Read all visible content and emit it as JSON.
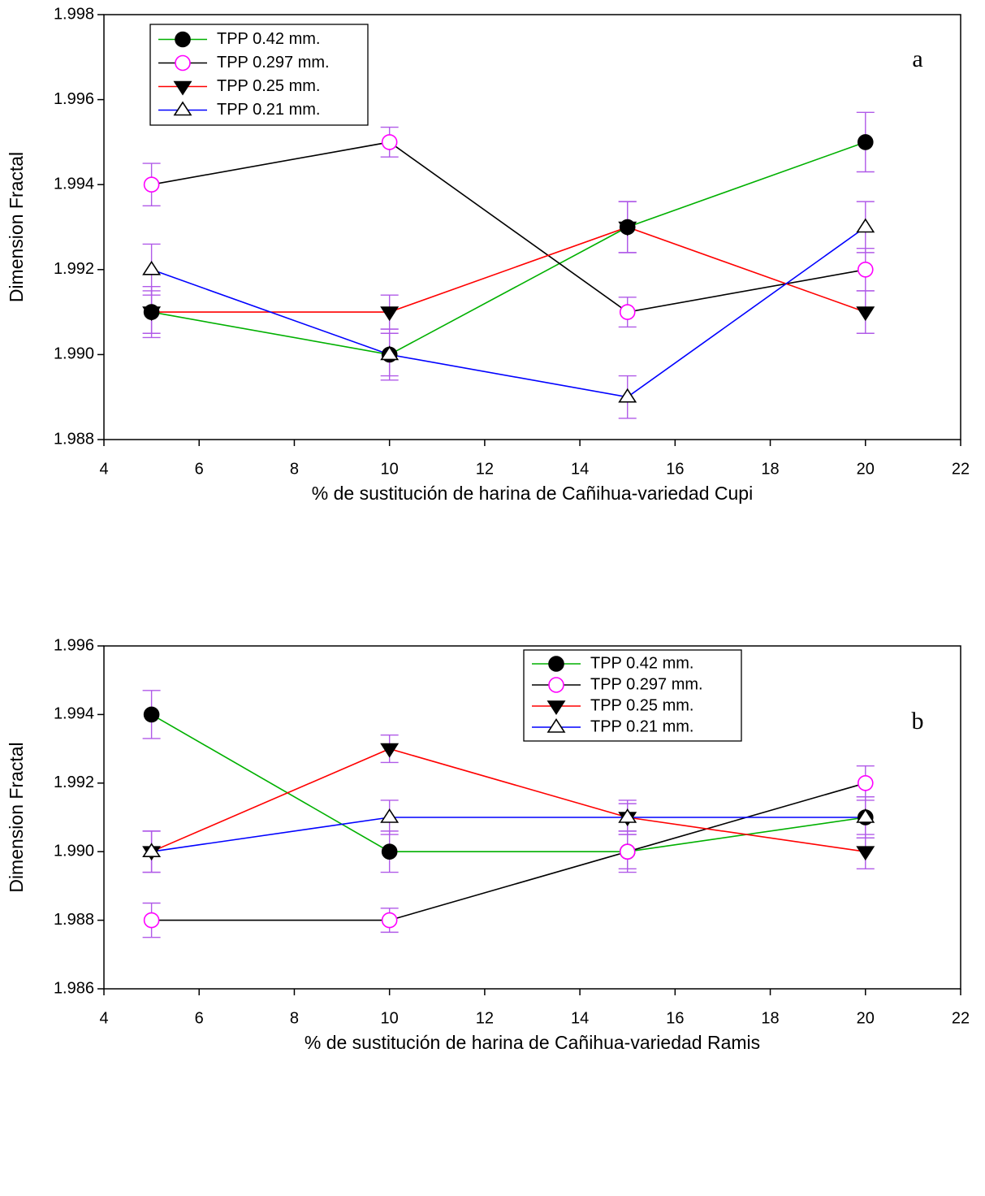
{
  "chart_data": [
    {
      "type": "line",
      "annotation": "a",
      "xlabel": "% de sustitución de harina de Cañihua-variedad Cupi",
      "ylabel": "Dimension Fractal",
      "x": [
        5,
        10,
        15,
        20
      ],
      "xlim": [
        4,
        22
      ],
      "xticks": [
        4,
        6,
        8,
        10,
        12,
        14,
        16,
        18,
        20,
        22
      ],
      "ylim": [
        1.988,
        1.998
      ],
      "yticks": [
        1.988,
        {
          "value": 1.99,
          "label": "1.990"
        },
        1.992,
        1.994,
        1.996,
        1.998
      ],
      "legend": "upper left",
      "error_color": "#b05ae8",
      "series": [
        {
          "name": "TPP 0.42 mm.",
          "color": "#00b000",
          "marker": "circle",
          "marker_fill": "#000000",
          "marker_stroke": "#000000",
          "values": [
            1.991,
            1.99,
            1.993,
            1.995
          ],
          "errors": [
            0.0006,
            0.0006,
            0.0006,
            0.0007
          ]
        },
        {
          "name": "TPP 0.297 mm.",
          "color": "#000000",
          "marker": "circle",
          "marker_fill": "#ffffff",
          "marker_stroke": "#ff00ff",
          "values": [
            1.994,
            1.995,
            1.991,
            1.992
          ],
          "errors": [
            0.0005,
            0.00035,
            0.00035,
            0.0005
          ]
        },
        {
          "name": "TPP 0.25 mm.",
          "color": "#ff0000",
          "marker": "triangle-down",
          "marker_fill": "#000000",
          "marker_stroke": "#000000",
          "values": [
            1.991,
            1.991,
            1.993,
            1.991
          ],
          "errors": [
            0.0005,
            0.0004,
            0.0006,
            0.0005
          ]
        },
        {
          "name": "TPP 0.21 mm.",
          "color": "#0000ff",
          "marker": "triangle-up",
          "marker_fill": "#ffffff",
          "marker_stroke": "#000000",
          "values": [
            1.992,
            1.99,
            1.989,
            1.993
          ],
          "errors": [
            0.0006,
            0.0005,
            0.0005,
            0.0006
          ]
        }
      ]
    },
    {
      "type": "line",
      "annotation": "b",
      "xlabel": "% de sustitución de harina de Cañihua-variedad Ramis",
      "ylabel": "Dimension Fractal",
      "x": [
        5,
        10,
        15,
        20
      ],
      "xlim": [
        4,
        22
      ],
      "xticks": [
        4,
        6,
        8,
        10,
        12,
        14,
        16,
        18,
        20,
        22
      ],
      "ylim": [
        1.986,
        1.996
      ],
      "yticks": [
        1.986,
        1.988,
        {
          "value": 1.99,
          "label": "1.990"
        },
        1.992,
        1.994,
        1.996
      ],
      "legend": "upper right",
      "error_color": "#b05ae8",
      "series": [
        {
          "name": "TPP 0.42 mm.",
          "color": "#00b000",
          "marker": "circle",
          "marker_fill": "#000000",
          "marker_stroke": "#000000",
          "values": [
            1.994,
            1.99,
            1.99,
            1.991
          ],
          "errors": [
            0.0007,
            0.0006,
            0.0006,
            0.0006
          ]
        },
        {
          "name": "TPP 0.297 mm.",
          "color": "#000000",
          "marker": "circle",
          "marker_fill": "#ffffff",
          "marker_stroke": "#ff00ff",
          "values": [
            1.988,
            1.988,
            1.99,
            1.992
          ],
          "errors": [
            0.0005,
            0.00035,
            0.0005,
            0.0005
          ]
        },
        {
          "name": "TPP 0.25 mm.",
          "color": "#ff0000",
          "marker": "triangle-down",
          "marker_fill": "#000000",
          "marker_stroke": "#000000",
          "values": [
            1.99,
            1.993,
            1.991,
            1.99
          ],
          "errors": [
            0.0006,
            0.0004,
            0.0005,
            0.0005
          ]
        },
        {
          "name": "TPP 0.21 mm.",
          "color": "#0000ff",
          "marker": "triangle-up",
          "marker_fill": "#ffffff",
          "marker_stroke": "#000000",
          "values": [
            1.99,
            1.991,
            1.991,
            1.991
          ],
          "errors": [
            0.0006,
            0.0005,
            0.0004,
            0.0006
          ]
        }
      ]
    }
  ]
}
